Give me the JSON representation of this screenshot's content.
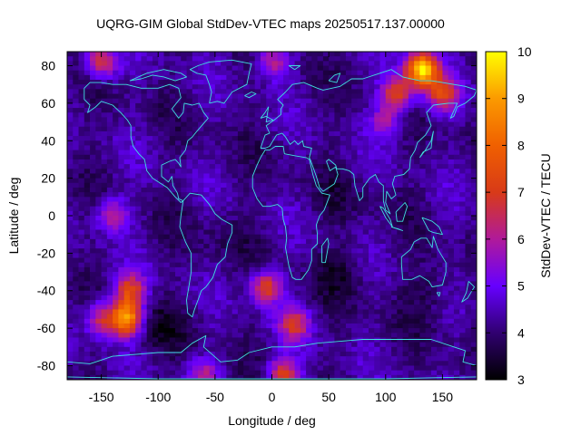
{
  "title": "UQRG-GIM Global StdDev-VTEC maps 20250517.137.00000",
  "chart_data": {
    "type": "heatmap",
    "title": "UQRG-GIM Global StdDev-VTEC maps 20250517.137.00000",
    "xlabel": "Longitude / deg",
    "ylabel": "Latitude / deg",
    "colorbar_label": "StdDev-VTEC / TECU",
    "xlim": [
      -180,
      180
    ],
    "ylim": [
      -87.5,
      87.5
    ],
    "xticks": [
      -150,
      -100,
      -50,
      0,
      50,
      100,
      150
    ],
    "yticks": [
      -80,
      -60,
      -40,
      -20,
      0,
      20,
      40,
      60,
      80
    ],
    "color_range": [
      3,
      10
    ],
    "colorbar_ticks": [
      3,
      4,
      5,
      6,
      7,
      8,
      9,
      10
    ],
    "grid_step_deg": [
      5,
      2.5
    ],
    "background_level": 4.2,
    "hotspots": [
      {
        "lon": 132,
        "lat": 78,
        "value": 9.8
      },
      {
        "lon": 110,
        "lat": 65,
        "value": 7.2
      },
      {
        "lon": 150,
        "lat": 65,
        "value": 7.0
      },
      {
        "lon": -150,
        "lat": 82,
        "value": 6.8
      },
      {
        "lon": -128,
        "lat": -55,
        "value": 9.0
      },
      {
        "lon": -150,
        "lat": -55,
        "value": 6.5
      },
      {
        "lon": -125,
        "lat": -40,
        "value": 7.0
      },
      {
        "lon": -140,
        "lat": 0,
        "value": 6.3
      },
      {
        "lon": 20,
        "lat": -58,
        "value": 6.5
      },
      {
        "lon": -5,
        "lat": -38,
        "value": 7.2
      },
      {
        "lon": 10,
        "lat": -85,
        "value": 7.0
      },
      {
        "lon": -60,
        "lat": -85,
        "value": 6.0
      },
      {
        "lon": 0,
        "lat": 82,
        "value": 6.2
      },
      {
        "lon": 100,
        "lat": 50,
        "value": 5.8
      }
    ],
    "lowspots": [
      {
        "lon": -100,
        "lat": -60,
        "value": 3.5
      },
      {
        "lon": 60,
        "lat": -30,
        "value": 3.6
      },
      {
        "lon": 140,
        "lat": -40,
        "value": 3.7
      },
      {
        "lon": -40,
        "lat": -10,
        "value": 3.9
      },
      {
        "lon": 60,
        "lat": 10,
        "value": 3.9
      }
    ],
    "colorscale": [
      {
        "value": 3.0,
        "color": "#000000"
      },
      {
        "value": 4.0,
        "color": "#300070"
      },
      {
        "value": 5.0,
        "color": "#6600ff"
      },
      {
        "value": 6.0,
        "color": "#b01a9a"
      },
      {
        "value": 7.0,
        "color": "#d83a18"
      },
      {
        "value": 8.0,
        "color": "#f06000"
      },
      {
        "value": 9.0,
        "color": "#fb9a00"
      },
      {
        "value": 10.0,
        "color": "#ffff00"
      }
    ],
    "coastline_color": "#40e0e0"
  }
}
